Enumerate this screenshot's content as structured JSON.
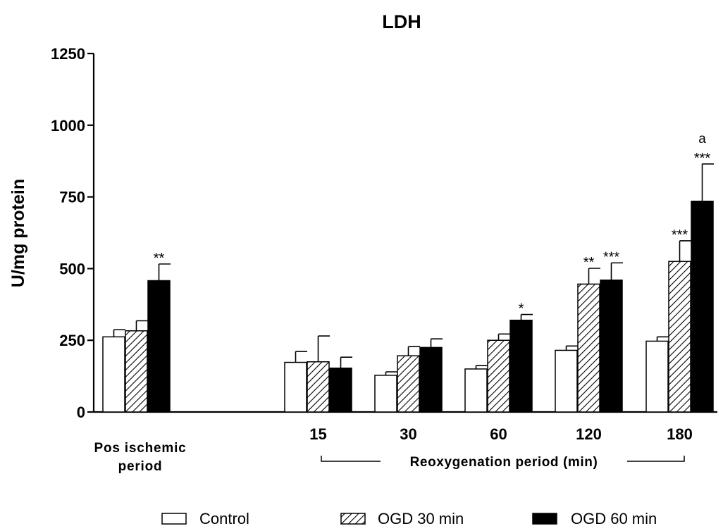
{
  "chart_data": {
    "type": "bar",
    "title": "LDH",
    "ylabel": "U/mg protein",
    "ylim": [
      0,
      1250
    ],
    "yticks": [
      0,
      250,
      500,
      750,
      1000,
      1250
    ],
    "categories": [
      "Pos ischemic period",
      "15",
      "30",
      "60",
      "120",
      "180"
    ],
    "category_label_lines": [
      [
        "Pos ischemic",
        "period"
      ],
      [
        "15"
      ],
      [
        "30"
      ],
      [
        "60"
      ],
      [
        "120"
      ],
      [
        "180"
      ]
    ],
    "group_label": "Reoxygenation period (min)",
    "legend_position": "bottom",
    "grid": false,
    "series": [
      {
        "name": "Control",
        "pattern": "white",
        "values": [
          262,
          173,
          128,
          150,
          215,
          247
        ],
        "errors": [
          25,
          38,
          12,
          12,
          15,
          15
        ],
        "annotations": [
          "",
          "",
          "",
          "",
          "",
          ""
        ]
      },
      {
        "name": "OGD 30 min",
        "pattern": "hatched",
        "values": [
          283,
          175,
          196,
          250,
          446,
          525
        ],
        "errors": [
          35,
          90,
          32,
          22,
          55,
          72
        ],
        "annotations": [
          "",
          "",
          "",
          "",
          "**",
          "***"
        ]
      },
      {
        "name": "OGD 60 min",
        "pattern": "solid",
        "values": [
          458,
          153,
          225,
          320,
          460,
          735
        ],
        "errors": [
          58,
          38,
          30,
          20,
          60,
          130
        ],
        "annotations": [
          "**",
          "",
          "",
          "*",
          "***",
          "a|***"
        ]
      }
    ]
  }
}
